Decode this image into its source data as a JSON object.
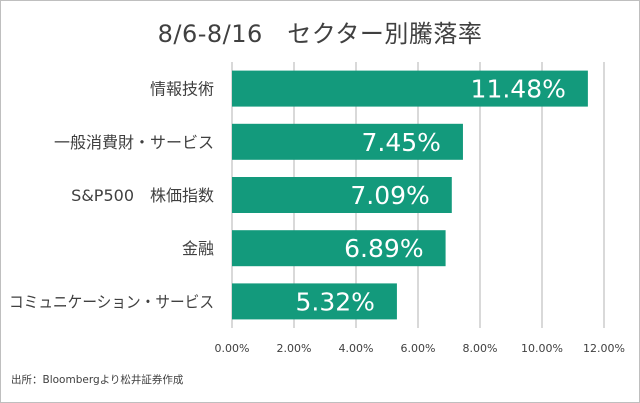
{
  "chart_data": {
    "type": "bar",
    "orientation": "horizontal",
    "title": "8/6-8/16　セクター別騰落率",
    "categories": [
      "情報技術",
      "一般消費財・サービス",
      "S&P500　株価指数",
      "金融",
      "コミュニケーション・サービス"
    ],
    "values": [
      11.48,
      7.45,
      7.09,
      6.89,
      5.32
    ],
    "data_labels": [
      "11.48%",
      "7.45%",
      "7.09%",
      "6.89%",
      "5.32%"
    ],
    "xlim": [
      0,
      12
    ],
    "xticks": [
      0,
      2,
      4,
      6,
      8,
      10,
      12
    ],
    "xtick_labels": [
      "0.00%",
      "2.00%",
      "4.00%",
      "6.00%",
      "8.00%",
      "10.00%",
      "12.00%"
    ],
    "xlabel": "",
    "ylabel": "",
    "grid": true,
    "legend": "none",
    "bar_color": "#139a7c",
    "grid_color": "#d9d9d9"
  },
  "source": "出所：Bloombergより松井証券作成"
}
